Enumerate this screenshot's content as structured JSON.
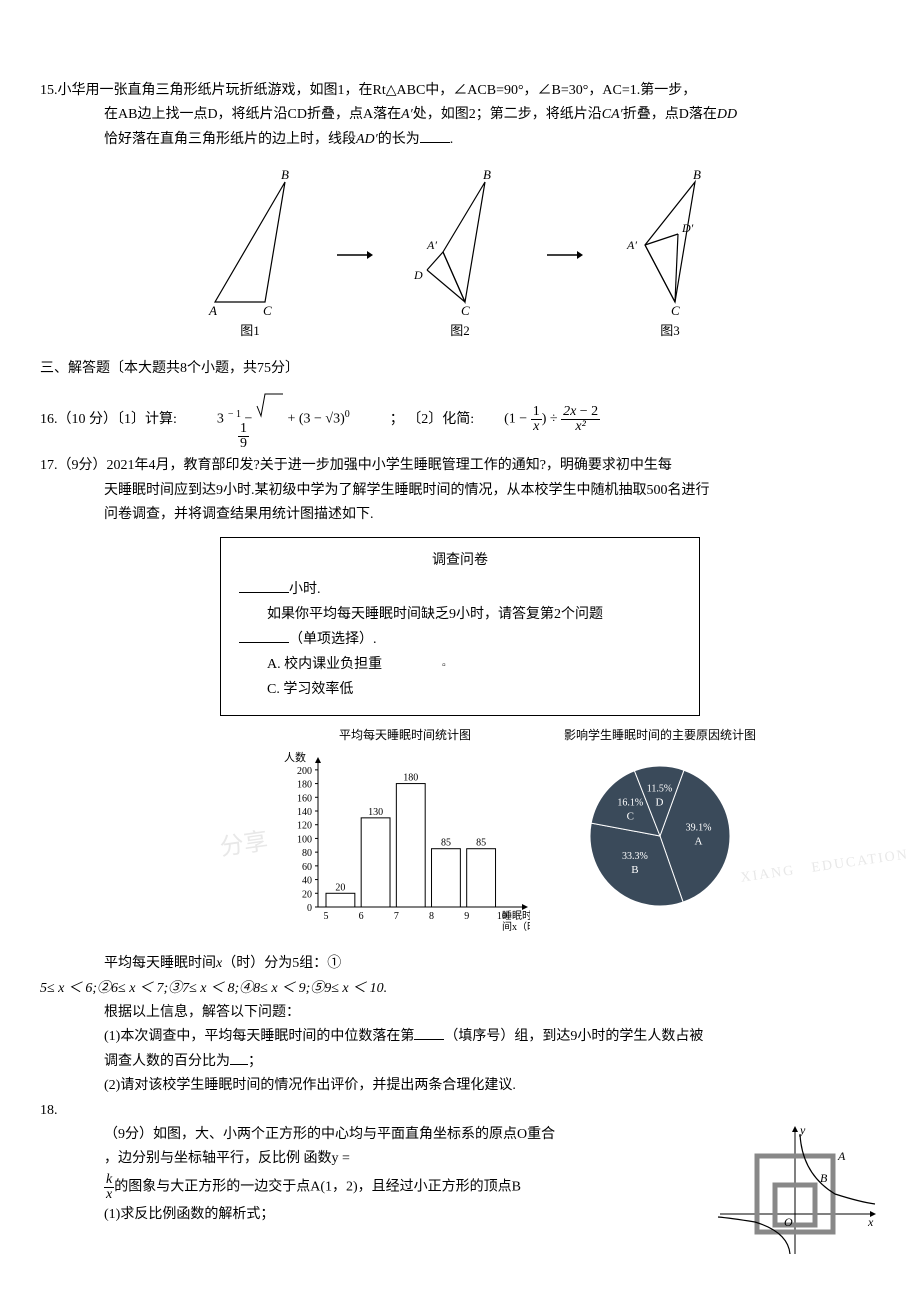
{
  "q15": {
    "num": "15.",
    "line1": "小华用一张直角三角形纸片玩折纸游戏，如图1，在Rt△ABC中，∠ACB=90°，∠B=30°，AC=1.第一步，",
    "line2_a": "在AB边上找一点D，将纸片沿CD折叠，点A落在",
    "line2_b": "处，如图2；第二步，将纸片沿",
    "line2_c": "折叠，点D落在",
    "line3_a": "恰好落在直角三角形纸片的边上时，线段",
    "line3_b": "的长为",
    "A_prime": "A′",
    "CA_prime": "CA′",
    "DD_prime": "DD",
    "AD_prime": "AD′",
    "period": "."
  },
  "diagrams": {
    "fig1": "图1",
    "fig2": "图2",
    "fig3": "图3",
    "labels": {
      "A": "A",
      "B": "B",
      "C": "C",
      "D": "D",
      "A_prime": "A′",
      "D_prime": "D′"
    },
    "colors": {
      "stroke": "#000000",
      "fill": "none"
    }
  },
  "section3": "三、解答题〔本大题共8个小题，共75分〕",
  "q16": {
    "prefix": "16.（10 分）〔1〕计算:",
    "expr1_a": "3",
    "expr1_sup": "− 1",
    "expr1_minus": " − ",
    "frac1_num": "1",
    "frac1_den": "9",
    "expr1_plus": " + (3 − ",
    "sqrt3": "√3",
    "expr1_paren": ")",
    "expr1_sup0": "0",
    "sep": "；    〔2〕化简:",
    "expr2_a": "(1 − ",
    "frac2_num": "1",
    "frac2_den": "x",
    "expr2_b": ") ÷ ",
    "frac3_num": "2x  − 2",
    "frac3_den": "x²"
  },
  "q17": {
    "num": "17.",
    "line1": "（9分）2021年4月，教育部印发?关于进一步加强中小学生睡眠管理工作的通知?，明确要求初中生每",
    "line2": "天睡眠时间应到达9小时.某初级中学为了解学生睡眠时间的情况，从本校学生中随机抽取500名进行",
    "line3": "问卷调查，并将调查结果用统计图描述如下."
  },
  "survey": {
    "title": "调查问卷",
    "l1_a": "小时.",
    "l2": "如果你平均每天睡眠时间缺乏9小时，请答复第2个问题",
    "l3_a": "（单项选择）.",
    "optA": "A. 校内课业负担重",
    "optC": "C. 学习效率低",
    "dot": "▫"
  },
  "barChart": {
    "title": "平均每天睡眠时间统计图",
    "ylabel": "人数",
    "xlabel": "睡眠时\n间x（时）",
    "categories": [
      "5",
      "6",
      "7",
      "8",
      "9",
      "10"
    ],
    "values": [
      20,
      130,
      180,
      85,
      85
    ],
    "value_labels": [
      "20",
      "130",
      "180",
      "85",
      "85"
    ],
    "yticks": [
      0,
      20,
      40,
      60,
      80,
      100,
      120,
      140,
      160,
      180,
      200
    ],
    "bar_color": "#ffffff",
    "bar_stroke": "#000000",
    "axis_color": "#000000",
    "ylim": [
      0,
      210
    ]
  },
  "pieChart": {
    "title": "影响学生睡眠时间的主要原因统计图",
    "slices": [
      {
        "label": "A",
        "pct": "39.1%",
        "value": 39.1
      },
      {
        "label": "B",
        "pct": "33.3%",
        "value": 33.3
      },
      {
        "label": "C",
        "pct": "16.1%",
        "value": 16.1
      },
      {
        "label": "D",
        "pct": "11.5%",
        "value": 11.5
      }
    ],
    "fill": "#3a4a5a",
    "stroke": "#ffffff"
  },
  "q17b": {
    "groups_intro_a": "平均每天睡眠时间",
    "groups_intro_b": "（时）分为5组：①",
    "x_var": "x",
    "groups_line": "5≤ x ＜ 6;②6≤ x ＜ 7;③7≤ x ＜ 8;④8≤ x ＜ 9;⑤9≤ x ＜ 10.",
    "solve_intro": "根据以上信息，解答以下问题：",
    "p1_a": "(1)本次调查中，平均每天睡眠时间的中位数落在第",
    "p1_b": "（填序号）组，到达9小时的学生人数占被",
    "p1_c": "调查人数的百分比为",
    "p1_d": "；",
    "p2": "(2)请对该校学生睡眠时间的情况作出评价，并提出两条合理化建议."
  },
  "q18": {
    "num": "18.",
    "line1": "（9分）如图，大、小两个正方形的中心均与平面直角坐标系的原点O重合",
    "line2": "，边分别与坐标轴平行，反比例 函数y =",
    "frac_num": "k",
    "frac_den": "x",
    "line3": "的图象与大正方形的一边交于点A(1，2)，且经过小正方形的顶点B",
    "line4": "(1)求反比例函数的解析式；",
    "labels": {
      "x": "x",
      "y": "y",
      "O": "O",
      "A": "A",
      "B": "B"
    }
  }
}
